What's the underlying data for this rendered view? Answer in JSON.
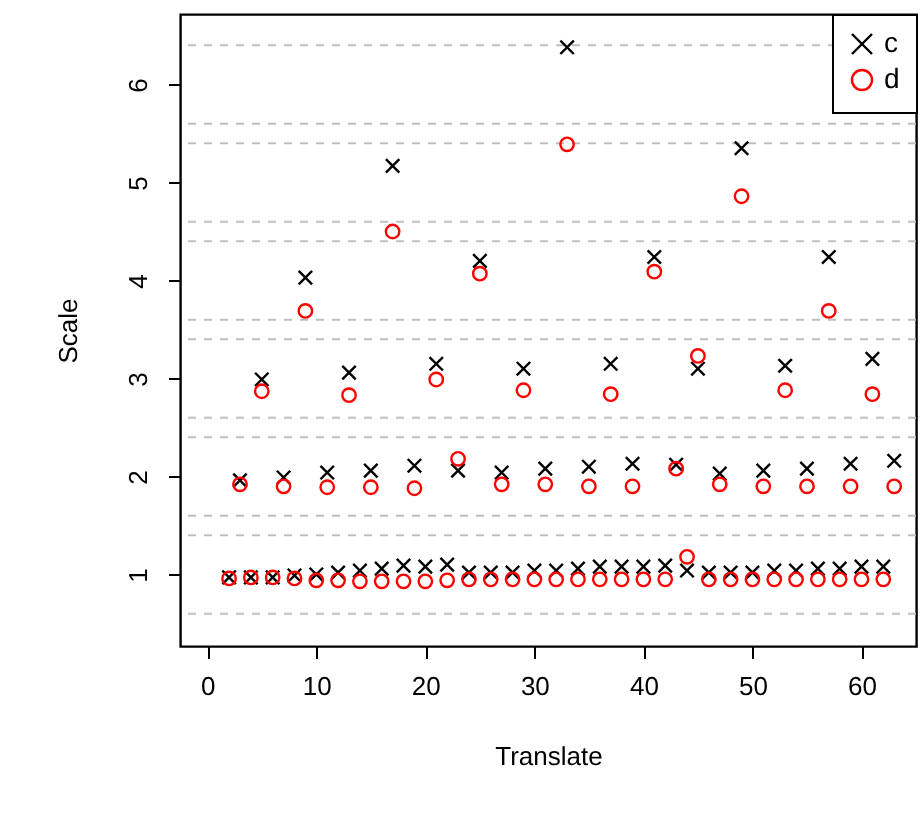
{
  "chart_data": {
    "type": "scatter",
    "xlabel": "Translate",
    "ylabel": "Scale",
    "x": [
      2,
      3,
      4,
      5,
      6,
      7,
      8,
      9,
      10,
      11,
      12,
      13,
      14,
      15,
      16,
      17,
      18,
      19,
      20,
      21,
      22,
      23,
      24,
      25,
      26,
      27,
      28,
      29,
      30,
      31,
      32,
      33,
      34,
      35,
      36,
      37,
      38,
      39,
      40,
      41,
      42,
      43,
      44,
      45,
      46,
      47,
      48,
      49,
      50,
      51,
      52,
      53,
      54,
      55,
      56,
      57,
      58,
      59,
      60,
      61,
      62,
      63
    ],
    "series": [
      {
        "name": "c",
        "color": "#000000",
        "marker": "cross",
        "values": [
          0.97,
          1.96,
          0.97,
          2.99,
          0.97,
          1.99,
          0.99,
          4.03,
          1.0,
          2.04,
          1.02,
          3.06,
          1.04,
          2.06,
          1.06,
          5.17,
          1.09,
          2.11,
          1.08,
          3.15,
          1.1,
          2.06,
          1.02,
          4.2,
          1.02,
          2.04,
          1.02,
          3.1,
          1.04,
          2.08,
          1.04,
          6.38,
          1.06,
          2.1,
          1.08,
          3.15,
          1.08,
          2.13,
          1.08,
          4.24,
          1.09,
          2.12,
          1.04,
          3.1,
          1.02,
          2.03,
          1.02,
          5.35,
          1.02,
          2.06,
          1.04,
          3.13,
          1.04,
          2.08,
          1.06,
          4.24,
          1.06,
          2.13,
          1.08,
          3.2,
          1.08,
          2.16
        ]
      },
      {
        "name": "d",
        "color": "#ff0000",
        "marker": "circle",
        "values": [
          0.96,
          1.92,
          0.97,
          2.87,
          0.97,
          1.9,
          0.96,
          3.69,
          0.94,
          1.89,
          0.94,
          2.83,
          0.93,
          1.89,
          0.93,
          4.5,
          0.93,
          1.88,
          0.93,
          2.99,
          0.94,
          2.18,
          0.95,
          4.07,
          0.95,
          1.92,
          0.95,
          2.88,
          0.95,
          1.92,
          0.95,
          5.39,
          0.95,
          1.9,
          0.95,
          2.84,
          0.95,
          1.9,
          0.95,
          4.09,
          0.95,
          2.08,
          1.18,
          3.23,
          0.95,
          1.92,
          0.95,
          4.86,
          0.95,
          1.9,
          0.95,
          2.88,
          0.95,
          1.9,
          0.95,
          3.69,
          0.95,
          1.9,
          0.95,
          2.84,
          0.95,
          1.9
        ]
      }
    ],
    "xlim": [
      -2.5,
      65
    ],
    "ylim": [
      0.27,
      6.72
    ],
    "xticks": [
      0,
      10,
      20,
      30,
      40,
      50,
      60
    ],
    "yticks": [
      1,
      2,
      3,
      4,
      5,
      6
    ],
    "ref_lines": [
      {
        "axis": "y",
        "value": 0.6,
        "color": "#bebebe",
        "line_style": "dashed"
      },
      {
        "axis": "y",
        "value": 1.4,
        "color": "#bebebe",
        "line_style": "dashed"
      },
      {
        "axis": "y",
        "value": 1.6,
        "color": "#bebebe",
        "line_style": "dashed"
      },
      {
        "axis": "y",
        "value": 2.4,
        "color": "#bebebe",
        "line_style": "dashed"
      },
      {
        "axis": "y",
        "value": 2.6,
        "color": "#bebebe",
        "line_style": "dashed"
      },
      {
        "axis": "y",
        "value": 3.4,
        "color": "#bebebe",
        "line_style": "dashed"
      },
      {
        "axis": "y",
        "value": 3.6,
        "color": "#bebebe",
        "line_style": "dashed"
      },
      {
        "axis": "y",
        "value": 4.4,
        "color": "#bebebe",
        "line_style": "dashed"
      },
      {
        "axis": "y",
        "value": 4.6,
        "color": "#bebebe",
        "line_style": "dashed"
      },
      {
        "axis": "y",
        "value": 5.4,
        "color": "#bebebe",
        "line_style": "dashed"
      },
      {
        "axis": "y",
        "value": 5.6,
        "color": "#bebebe",
        "line_style": "dashed"
      },
      {
        "axis": "y",
        "value": 6.4,
        "color": "#bebebe",
        "line_style": "dashed"
      }
    ],
    "grid": false,
    "legend": "top right"
  }
}
